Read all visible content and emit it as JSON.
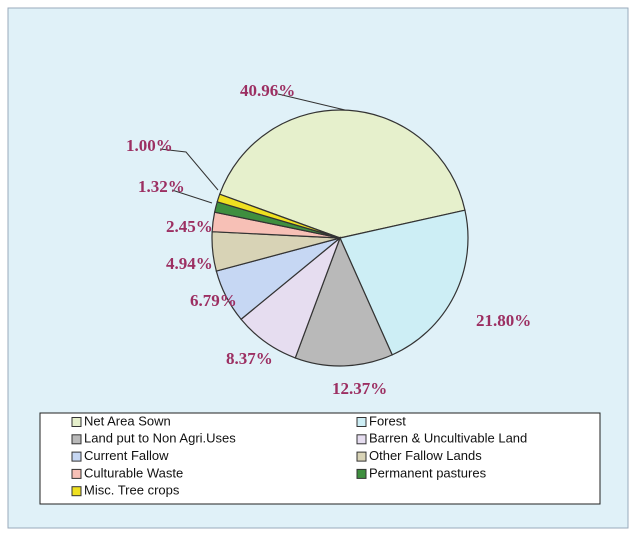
{
  "chart_data": {
    "type": "pie",
    "categories": [
      "Net Area Sown",
      "Forest",
      "Land put to Non Agri.Uses",
      "Barren & Uncultivable Land",
      "Current Fallow",
      "Other Fallow Lands",
      "Culturable Waste",
      "Permanent pastures",
      "Misc. Tree crops"
    ],
    "values": [
      40.96,
      21.8,
      12.37,
      8.37,
      6.79,
      4.94,
      2.45,
      1.32,
      1.0
    ],
    "value_labels": [
      "40.96%",
      "21.80%",
      "12.37%",
      "8.37%",
      "6.79%",
      "4.94%",
      "2.45%",
      "1.32%",
      "1.00%"
    ],
    "colors": [
      "#e6f0cc",
      "#cdeef5",
      "#b9b9b9",
      "#e6ddf0",
      "#c6d7f3",
      "#d8d3b6",
      "#f7c0b6",
      "#3f8f3f",
      "#efe020"
    ],
    "legend": "bottom"
  }
}
